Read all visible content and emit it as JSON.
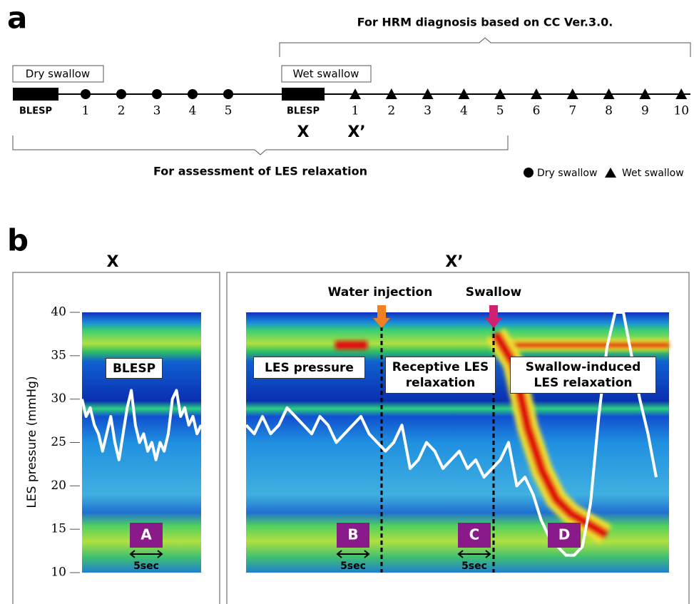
{
  "panel_a": {
    "label": "a",
    "top_bracket": "For HRM diagnosis based on CC Ver.3.0.",
    "dry_box": "Dry swallow",
    "wet_box": "Wet swallow",
    "dry_items": [
      "BLESP",
      "1",
      "2",
      "3",
      "4",
      "5"
    ],
    "wet_items": [
      "BLESP",
      "1",
      "2",
      "3",
      "4",
      "5",
      "6",
      "7",
      "8",
      "9",
      "10"
    ],
    "markers": [
      "X",
      "X’"
    ],
    "bottom_bracket": "For assessment of LES relaxation",
    "legend": [
      "Dry swallow",
      "Wet swallow"
    ]
  },
  "panel_b": {
    "label": "b",
    "titles": [
      "X",
      "X’"
    ],
    "events": [
      "Water injection",
      "Swallow"
    ],
    "annotations": [
      "BLESP",
      "LES pressure",
      "Receptive LES relaxation",
      "Swallow-induced LES relaxation"
    ],
    "periods": [
      "A",
      "B",
      "C",
      "D"
    ],
    "scale_bar": "5sec",
    "chart_data": {
      "type": "line",
      "y_label": "LES pressure (mmHg)",
      "ylim": [
        10,
        40
      ],
      "yticks": [
        10,
        15,
        20,
        25,
        30,
        35,
        40
      ],
      "series": [
        {
          "color": "#ffffff",
          "values": [
            30,
            28,
            29,
            27,
            26,
            24,
            26,
            28,
            25,
            23,
            26,
            29,
            31,
            27,
            25,
            26,
            24,
            25,
            23,
            25,
            24,
            26,
            30,
            31,
            28,
            29,
            27,
            28,
            26,
            27
          ]
        },
        {
          "color": "#ffffff",
          "values": [
            27,
            26,
            28,
            26,
            27,
            29,
            28,
            27,
            26,
            28,
            27,
            25,
            26,
            27,
            28,
            26,
            25,
            24,
            25,
            27,
            22,
            23,
            25,
            24,
            22,
            23,
            24,
            22,
            23,
            21,
            22,
            23,
            25,
            20,
            21,
            19,
            16,
            14,
            13,
            12,
            12,
            13,
            18,
            28,
            36,
            40,
            40,
            35,
            30,
            26,
            21
          ]
        }
      ]
    }
  }
}
